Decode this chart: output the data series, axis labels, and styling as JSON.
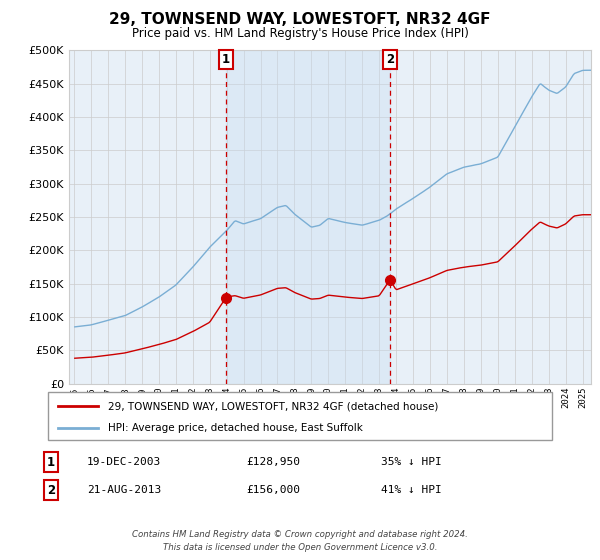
{
  "title": "29, TOWNSEND WAY, LOWESTOFT, NR32 4GF",
  "subtitle": "Price paid vs. HM Land Registry's House Price Index (HPI)",
  "legend_line1": "29, TOWNSEND WAY, LOWESTOFT, NR32 4GF (detached house)",
  "legend_line2": "HPI: Average price, detached house, East Suffolk",
  "footer": "Contains HM Land Registry data © Crown copyright and database right 2024.\nThis data is licensed under the Open Government Licence v3.0.",
  "purchase1_date": "19-DEC-2003",
  "purchase1_price": 128950,
  "purchase1_hpi": "35% ↓ HPI",
  "purchase2_date": "21-AUG-2013",
  "purchase2_price": 156000,
  "purchase2_hpi": "41% ↓ HPI",
  "purchase1_year": 2003.96,
  "purchase2_year": 2013.64,
  "red_color": "#cc0000",
  "blue_color": "#7aaed4",
  "shade_color": "#ddeeff",
  "background_color": "#e8f0f8",
  "ylim": [
    0,
    500000
  ],
  "yticks": [
    0,
    50000,
    100000,
    150000,
    200000,
    250000,
    300000,
    350000,
    400000,
    450000,
    500000
  ],
  "xlim_left": 1994.7,
  "xlim_right": 2025.5
}
